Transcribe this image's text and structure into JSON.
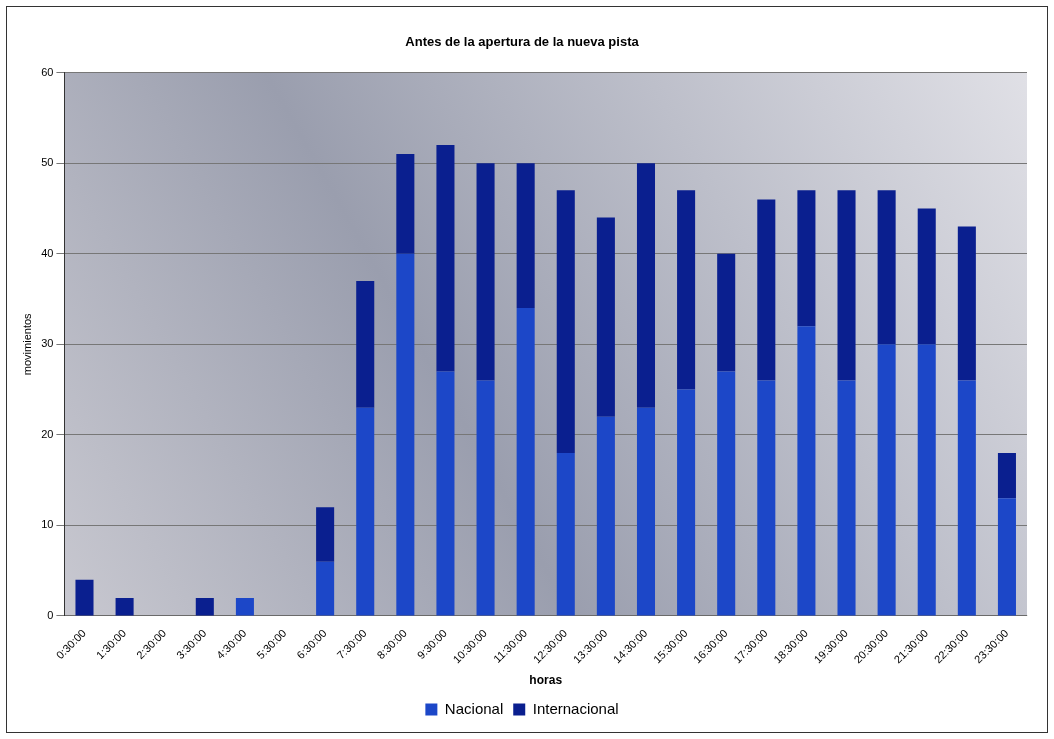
{
  "chart_data": {
    "type": "bar",
    "title": "Antes de la apertura de la nueva pista",
    "xlabel": "horas",
    "ylabel": "movimientos",
    "categories": [
      "0:30:00",
      "1:30:00",
      "2:30:00",
      "3:30:00",
      "4:30:00",
      "5:30:00",
      "6:30:00",
      "7:30:00",
      "8:30:00",
      "9:30:00",
      "10:30:00",
      "11:30:00",
      "12:30:00",
      "13:30:00",
      "14:30:00",
      "15:30:00",
      "16:30:00",
      "17:30:00",
      "18:30:00",
      "19:30:00",
      "20:30:00",
      "21:30:00",
      "22:30:00",
      "23:30:00"
    ],
    "stacked": true,
    "series": [
      {
        "name": "Nacional",
        "color": "#1c47c8",
        "values": [
          0,
          0,
          0,
          0,
          2,
          0,
          6,
          23,
          40,
          27,
          26,
          34,
          18,
          22,
          23,
          25,
          27,
          26,
          32,
          26,
          30,
          30,
          26,
          13
        ]
      },
      {
        "name": "Internacional",
        "color": "#0a1f8f",
        "values": [
          4,
          2,
          0,
          2,
          0,
          0,
          6,
          14,
          11,
          25,
          24,
          16,
          29,
          22,
          27,
          22,
          13,
          20,
          15,
          21,
          17,
          15,
          17,
          5
        ]
      }
    ],
    "ylim": [
      0,
      60
    ],
    "yticks": [
      0,
      10,
      20,
      30,
      40,
      50,
      60
    ],
    "grid": "y",
    "legend": "bottom"
  }
}
